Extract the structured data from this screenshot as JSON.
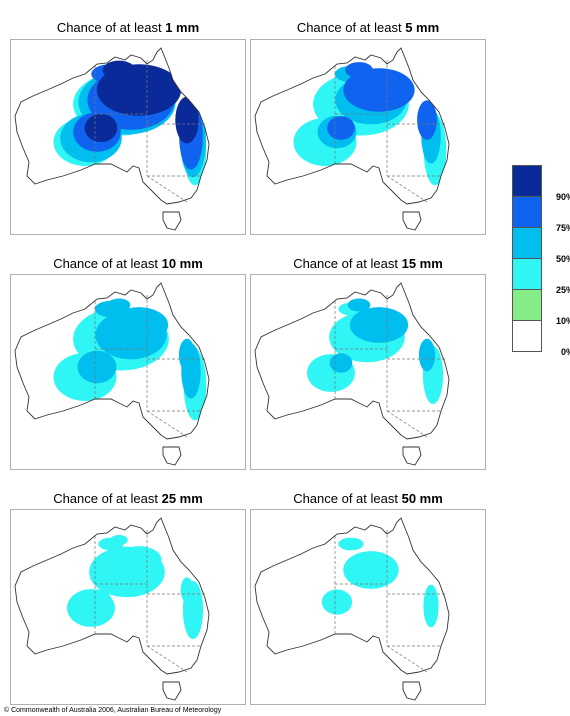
{
  "panels": [
    {
      "prefix": "Chance of at least ",
      "amount": "1 mm",
      "levels": [
        4,
        3,
        2,
        1
      ]
    },
    {
      "prefix": "Chance of at least ",
      "amount": "5 mm",
      "levels": [
        3,
        2,
        1,
        1
      ]
    },
    {
      "prefix": "Chance of at least ",
      "amount": "10 mm",
      "levels": [
        2,
        2,
        1,
        1
      ]
    },
    {
      "prefix": "Chance of at least ",
      "amount": "15 mm",
      "levels": [
        2,
        1,
        1,
        0
      ]
    },
    {
      "prefix": "Chance of at least ",
      "amount": "25 mm",
      "levels": [
        1,
        1,
        1,
        0
      ]
    },
    {
      "prefix": "Chance of at least ",
      "amount": "50 mm",
      "levels": [
        0,
        1,
        0,
        0
      ]
    }
  ],
  "legend": {
    "labels": [
      "90%",
      "75%",
      "50%",
      "25%",
      "10%",
      "0%"
    ],
    "colors": [
      "#0a2a9a",
      "#0f63ef",
      "#00bfef",
      "#2ff5f5",
      "#86ec86",
      "#ffffff"
    ]
  },
  "copyright": "© Commonwealth of Australia 2006, Australian Bureau of Meteorology"
}
